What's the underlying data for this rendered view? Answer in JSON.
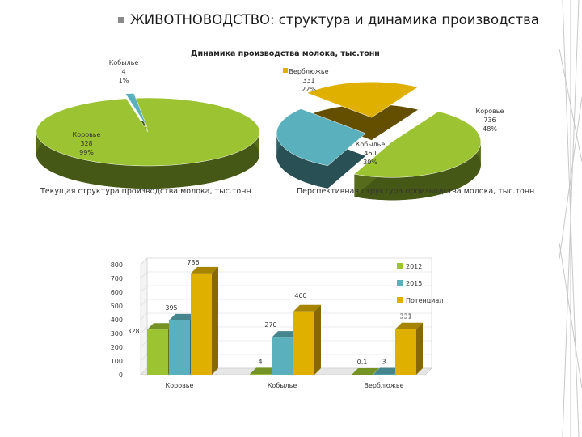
{
  "slide": {
    "title": "ЖИВОТНОВОДСТВО: структура и динамика производства"
  },
  "colors": {
    "green": "#9cc331",
    "teal": "#5ab1bd",
    "gold": "#dfb000"
  },
  "chart_data": [
    {
      "type": "pie",
      "title": "Текущая структура производства молока, тыс.тонн",
      "slices": [
        {
          "label": "Коровье",
          "value": 328,
          "percent": "99%"
        },
        {
          "label": "Кобылье",
          "value": 4,
          "percent": "1%"
        }
      ]
    },
    {
      "type": "pie",
      "title": "Перспективная структура производства молока, тыс.тонн",
      "slices": [
        {
          "label": "Коровье",
          "value": 736,
          "percent": "48%"
        },
        {
          "label": "Кобылье",
          "value": 460,
          "percent": "30%"
        },
        {
          "label": "Верблюжье",
          "value": 331,
          "percent": "22%"
        }
      ]
    },
    {
      "type": "bar",
      "title": "Динамика производства молока, тыс.тонн",
      "categories": [
        "Коровье",
        "Кобылье",
        "Верблюжье"
      ],
      "series": [
        {
          "name": "2012",
          "values": [
            328,
            4,
            0.1
          ],
          "labels": [
            "328",
            "4",
            "0.1"
          ]
        },
        {
          "name": "2015",
          "values": [
            395,
            270,
            3
          ],
          "labels": [
            "395",
            "270",
            "3"
          ]
        },
        {
          "name": "Потенциал",
          "values": [
            736,
            460,
            331
          ],
          "labels": [
            "736",
            "460",
            "331"
          ]
        }
      ],
      "yticks": [
        "0",
        "100",
        "200",
        "300",
        "400",
        "500",
        "600",
        "700",
        "800"
      ],
      "ylim": [
        0,
        800
      ]
    }
  ]
}
